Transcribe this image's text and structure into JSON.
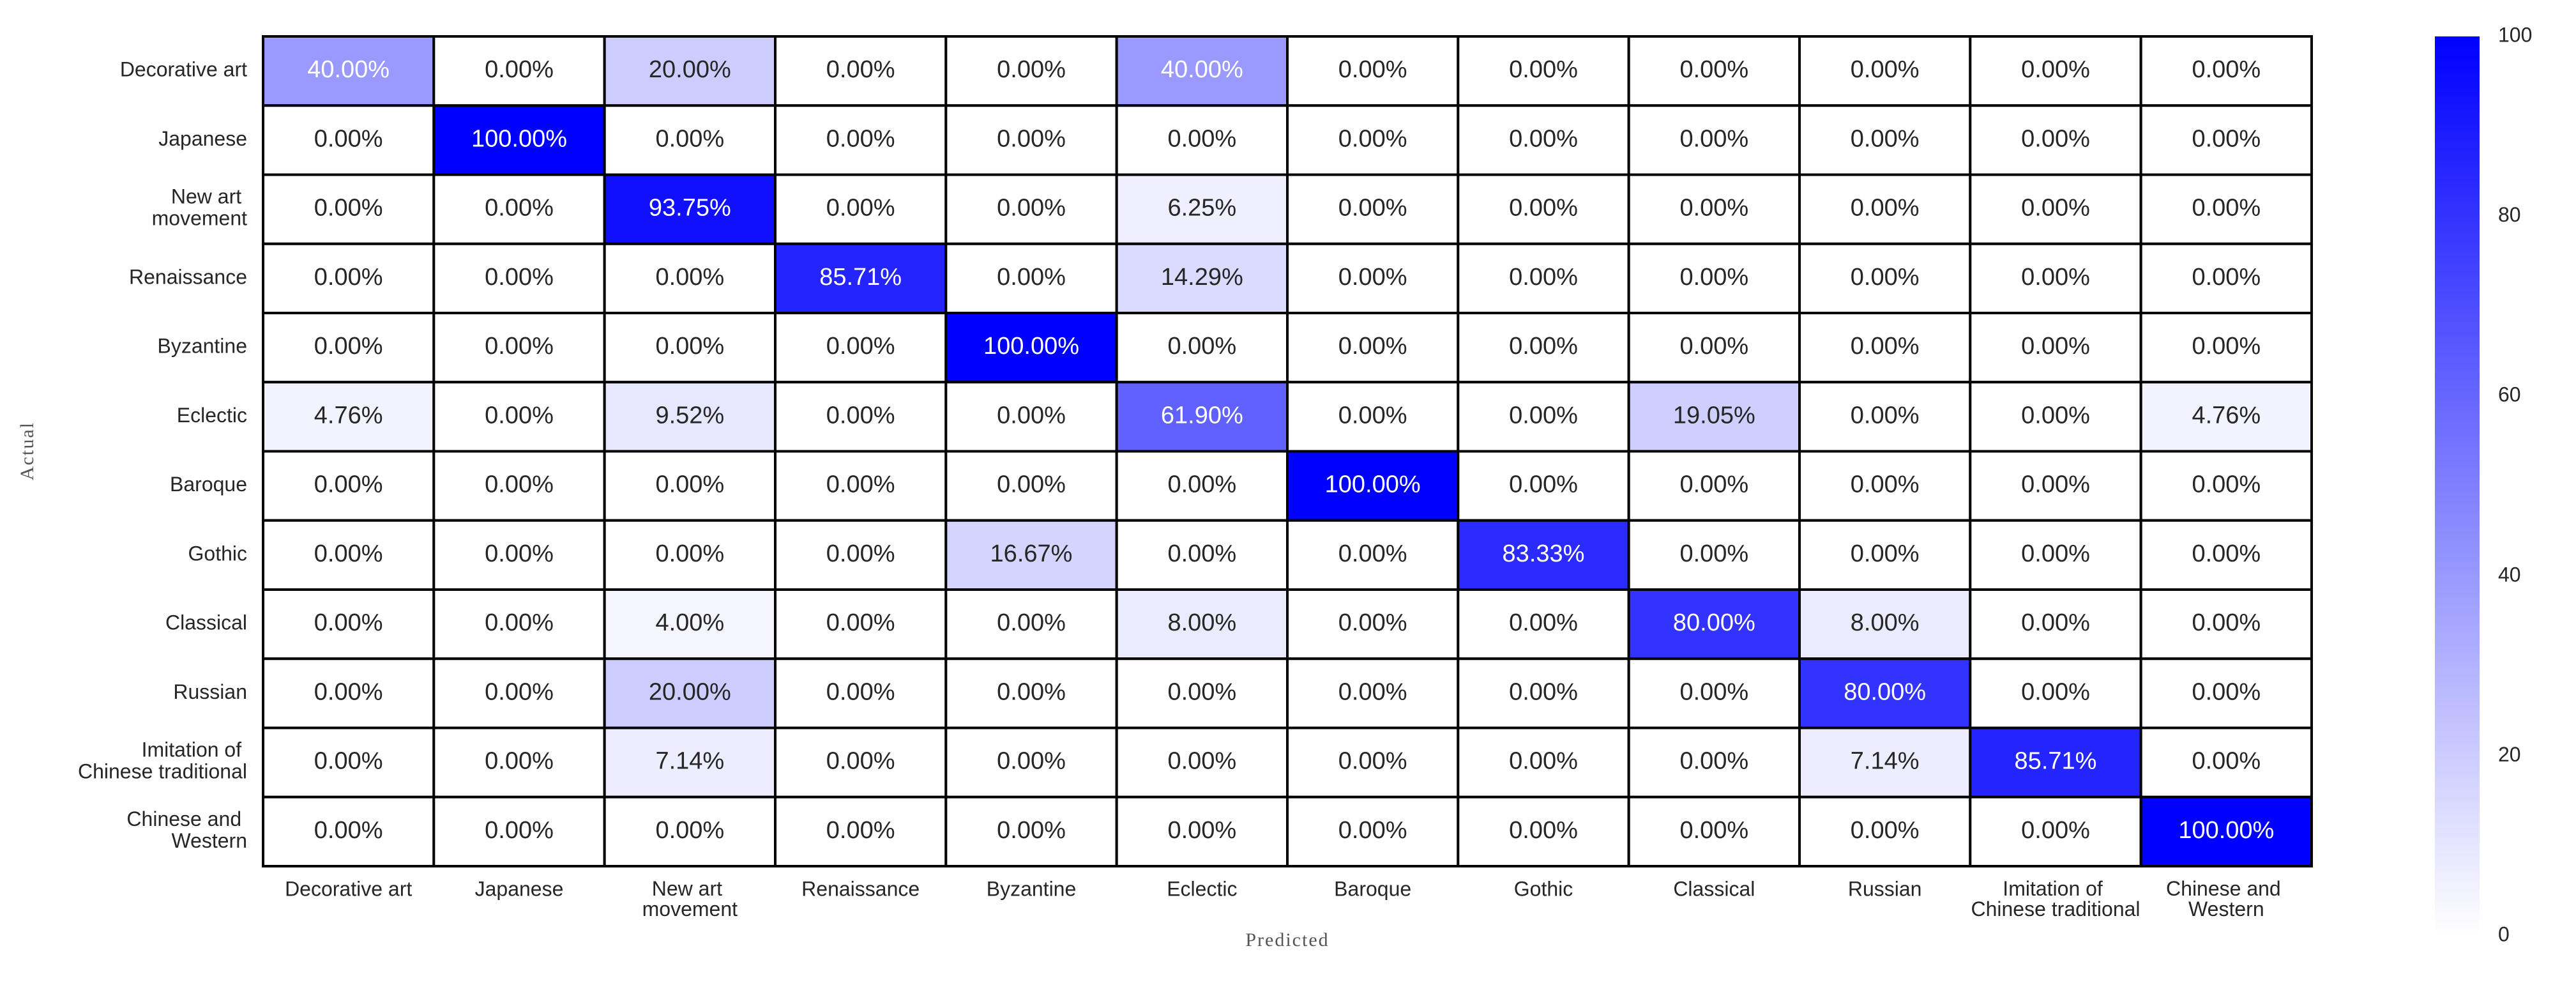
{
  "chart_data": {
    "type": "heatmap",
    "xlabel": "Predicted",
    "ylabel": "Actual",
    "x_categories": [
      "Decorative art",
      "Japanese",
      "New art movement",
      "Renaissance",
      "Byzantine",
      "Eclectic",
      "Baroque",
      "Gothic",
      "Classical",
      "Russian",
      "Imitation of Chinese traditional",
      "Chinese and Western"
    ],
    "y_categories": [
      "Decorative art",
      "Japanese",
      "New art movement",
      "Renaissance",
      "Byzantine",
      "Eclectic",
      "Baroque",
      "Gothic",
      "Classical",
      "Russian",
      "Imitation of Chinese traditional",
      "Chinese and Western"
    ],
    "values": [
      [
        40,
        0,
        20,
        0,
        0,
        40,
        0,
        0,
        0,
        0,
        0,
        0
      ],
      [
        0,
        100,
        0,
        0,
        0,
        0,
        0,
        0,
        0,
        0,
        0,
        0
      ],
      [
        0,
        0,
        93.75,
        0,
        0,
        6.25,
        0,
        0,
        0,
        0,
        0,
        0
      ],
      [
        0,
        0,
        0,
        85.71,
        0,
        14.29,
        0,
        0,
        0,
        0,
        0,
        0
      ],
      [
        0,
        0,
        0,
        0,
        100,
        0,
        0,
        0,
        0,
        0,
        0,
        0
      ],
      [
        4.76,
        0,
        9.52,
        0,
        0,
        61.9,
        0,
        0,
        19.05,
        0,
        0,
        4.76
      ],
      [
        0,
        0,
        0,
        0,
        0,
        0,
        100,
        0,
        0,
        0,
        0,
        0
      ],
      [
        0,
        0,
        0,
        0,
        16.67,
        0,
        0,
        83.33,
        0,
        0,
        0,
        0
      ],
      [
        0,
        0,
        4,
        0,
        0,
        8,
        0,
        0,
        80,
        8,
        0,
        0
      ],
      [
        0,
        0,
        20,
        0,
        0,
        0,
        0,
        0,
        0,
        80,
        0,
        0
      ],
      [
        0,
        0,
        7.14,
        0,
        0,
        0,
        0,
        0,
        0,
        7.14,
        85.71,
        0
      ],
      [
        0,
        0,
        0,
        0,
        0,
        0,
        0,
        0,
        0,
        0,
        0,
        100
      ]
    ],
    "value_labels": [
      [
        "40.00%",
        "0.00%",
        "20.00%",
        "0.00%",
        "0.00%",
        "40.00%",
        "0.00%",
        "0.00%",
        "0.00%",
        "0.00%",
        "0.00%",
        "0.00%"
      ],
      [
        "0.00%",
        "100.00%",
        "0.00%",
        "0.00%",
        "0.00%",
        "0.00%",
        "0.00%",
        "0.00%",
        "0.00%",
        "0.00%",
        "0.00%",
        "0.00%"
      ],
      [
        "0.00%",
        "0.00%",
        "93.75%",
        "0.00%",
        "0.00%",
        "6.25%",
        "0.00%",
        "0.00%",
        "0.00%",
        "0.00%",
        "0.00%",
        "0.00%"
      ],
      [
        "0.00%",
        "0.00%",
        "0.00%",
        "85.71%",
        "0.00%",
        "14.29%",
        "0.00%",
        "0.00%",
        "0.00%",
        "0.00%",
        "0.00%",
        "0.00%"
      ],
      [
        "0.00%",
        "0.00%",
        "0.00%",
        "0.00%",
        "100.00%",
        "0.00%",
        "0.00%",
        "0.00%",
        "0.00%",
        "0.00%",
        "0.00%",
        "0.00%"
      ],
      [
        "4.76%",
        "0.00%",
        "9.52%",
        "0.00%",
        "0.00%",
        "61.90%",
        "0.00%",
        "0.00%",
        "19.05%",
        "0.00%",
        "0.00%",
        "4.76%"
      ],
      [
        "0.00%",
        "0.00%",
        "0.00%",
        "0.00%",
        "0.00%",
        "0.00%",
        "100.00%",
        "0.00%",
        "0.00%",
        "0.00%",
        "0.00%",
        "0.00%"
      ],
      [
        "0.00%",
        "0.00%",
        "0.00%",
        "0.00%",
        "16.67%",
        "0.00%",
        "0.00%",
        "83.33%",
        "0.00%",
        "0.00%",
        "0.00%",
        "0.00%"
      ],
      [
        "0.00%",
        "0.00%",
        "4.00%",
        "0.00%",
        "0.00%",
        "8.00%",
        "0.00%",
        "0.00%",
        "80.00%",
        "8.00%",
        "0.00%",
        "0.00%"
      ],
      [
        "0.00%",
        "0.00%",
        "20.00%",
        "0.00%",
        "0.00%",
        "0.00%",
        "0.00%",
        "0.00%",
        "0.00%",
        "80.00%",
        "0.00%",
        "0.00%"
      ],
      [
        "0.00%",
        "0.00%",
        "7.14%",
        "0.00%",
        "0.00%",
        "0.00%",
        "0.00%",
        "0.00%",
        "0.00%",
        "7.14%",
        "85.71%",
        "0.00%"
      ],
      [
        "0.00%",
        "0.00%",
        "0.00%",
        "0.00%",
        "0.00%",
        "0.00%",
        "0.00%",
        "0.00%",
        "0.00%",
        "0.00%",
        "0.00%",
        "100.00%"
      ]
    ],
    "zlim": [
      0,
      100
    ],
    "zticks": [
      0,
      20,
      40,
      60,
      80,
      100
    ],
    "colors": [
      "#ffffff",
      "#0000ff"
    ]
  }
}
